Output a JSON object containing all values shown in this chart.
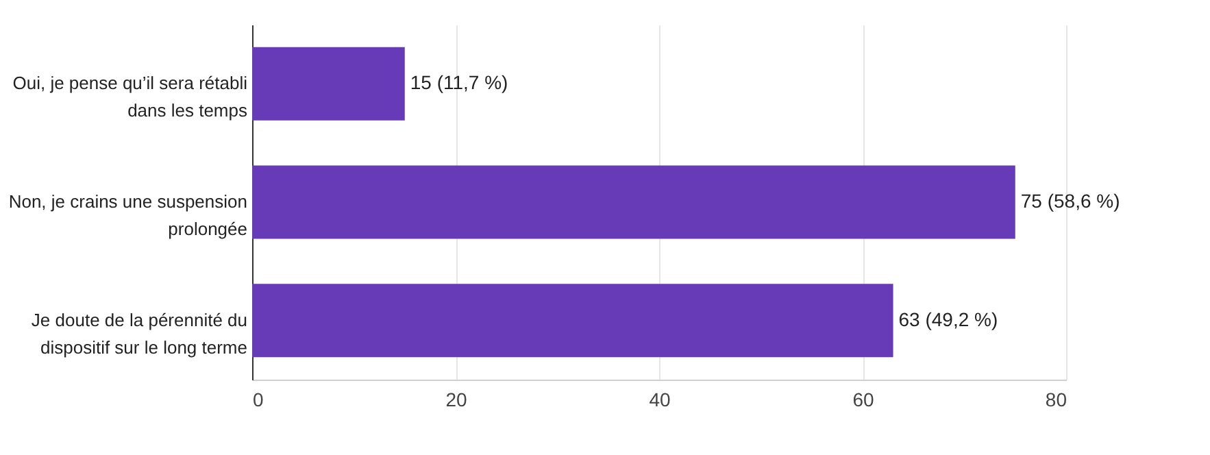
{
  "chart_data": {
    "type": "bar",
    "orientation": "horizontal",
    "categories": [
      "Oui, je pense qu’il sera rétabli dans les temps",
      "Non, je crains une suspension prolongée",
      "Je doute de la pérennité du dispositif sur le long terme"
    ],
    "values": [
      15,
      75,
      63
    ],
    "value_labels": [
      "15 (11,7 %)",
      "75 (58,6 %)",
      "63 (49,2 %)"
    ],
    "color": "#673ab7",
    "xlim": [
      0,
      80
    ],
    "xticks": [
      0,
      20,
      40,
      60,
      80
    ],
    "grid": "x"
  }
}
